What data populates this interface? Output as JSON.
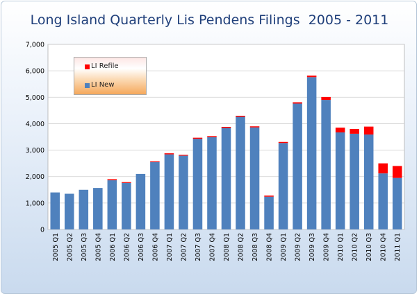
{
  "title": "Long Island Quarterly Lis Pendens Filings  2005 - 2011",
  "colors": {
    "new": "#4f81bd",
    "refile": "#ff0000",
    "title": "#1f3f7a"
  },
  "legend": {
    "placement": "top-left",
    "items": [
      {
        "label": "LI Refile",
        "color": "#ff0000"
      },
      {
        "label": "LI New",
        "color": "#4f81bd"
      }
    ]
  },
  "chart_data": {
    "type": "bar",
    "stacked": true,
    "title": "Long Island Quarterly Lis Pendens Filings  2005 - 2011",
    "ylim": [
      0,
      7000
    ],
    "yticks": [
      0,
      1000,
      2000,
      3000,
      4000,
      5000,
      6000,
      7000
    ],
    "ytick_labels": [
      "0",
      "1,000",
      "2,000",
      "3,000",
      "4,000",
      "5,000",
      "6,000",
      "7,000"
    ],
    "grid": true,
    "categories": [
      "2005 Q1",
      "2005 Q2",
      "2005 Q3",
      "2005 Q4",
      "2006 Q1",
      "2006 Q2",
      "2006 Q3",
      "2006 Q4",
      "2007 Q1",
      "2007 Q2",
      "2007 Q3",
      "2007 Q4",
      "2008 Q1",
      "2008 Q2",
      "2008 Q3",
      "2008 Q4",
      "2009 Q1",
      "2009 Q2",
      "2009 Q3",
      "2009 Q4",
      "2010 Q1",
      "2010 Q2",
      "2010 Q3",
      "2010 Q4",
      "2011 Q1"
    ],
    "series": [
      {
        "name": "LI New",
        "color": "#4f81bd",
        "values": [
          1400,
          1350,
          1500,
          1570,
          1860,
          1760,
          2100,
          2550,
          2840,
          2790,
          3430,
          3490,
          3840,
          4260,
          3860,
          1240,
          3270,
          4760,
          5760,
          4900,
          3670,
          3620,
          3590,
          2120,
          1950
        ]
      },
      {
        "name": "LI Refile",
        "color": "#ff0000",
        "values": [
          0,
          0,
          0,
          0,
          40,
          30,
          0,
          30,
          40,
          30,
          40,
          40,
          40,
          40,
          40,
          40,
          40,
          50,
          60,
          110,
          180,
          180,
          300,
          380,
          450
        ]
      }
    ]
  }
}
